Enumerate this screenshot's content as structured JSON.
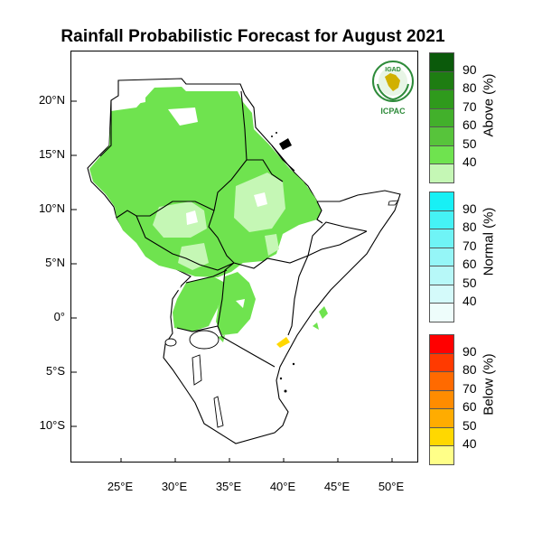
{
  "title": "Rainfall Probabilistic Forecast for August 2021",
  "map": {
    "lat_ticks": [
      "20°N",
      "15°N",
      "10°N",
      "5°N",
      "0°",
      "5°S",
      "10°S"
    ],
    "lon_ticks": [
      "25°E",
      "30°E",
      "35°E",
      "40°E",
      "45°E",
      "50°E"
    ],
    "logo": {
      "top_text": "IGAD",
      "bottom_text": "ICPAC"
    }
  },
  "legend": {
    "above": {
      "title": "Above (%)",
      "ticks": [
        "90",
        "80",
        "70",
        "60",
        "50",
        "40"
      ],
      "colors": [
        "#0b5a0b",
        "#1e7d12",
        "#2f9a1c",
        "#42b02b",
        "#57c43b",
        "#6fe34f",
        "#c5f7b5"
      ]
    },
    "normal": {
      "title": "Normal (%)",
      "ticks": [
        "90",
        "80",
        "70",
        "60",
        "50",
        "40"
      ],
      "colors": [
        "#18f0f5",
        "#45f2f5",
        "#6ff4f6",
        "#95f6f7",
        "#b7f8f8",
        "#d4fafa",
        "#eefdfb"
      ]
    },
    "below": {
      "title": "Below (%)",
      "ticks": [
        "90",
        "80",
        "70",
        "60",
        "50",
        "40"
      ],
      "colors": [
        "#ff0000",
        "#ff3a00",
        "#ff6a00",
        "#ff8c00",
        "#ffac00",
        "#ffd800",
        "#ffff88"
      ]
    }
  }
}
